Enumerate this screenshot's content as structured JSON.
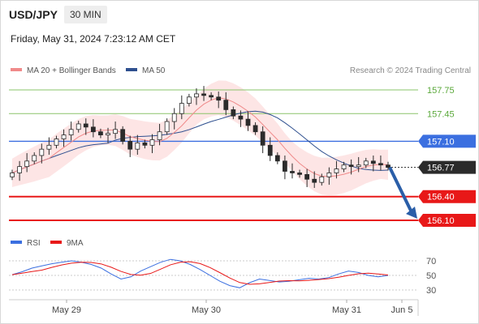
{
  "header": {
    "symbol": "USD/JPY",
    "timeframe": "30 MIN",
    "timestamp": "Friday, May 31, 2024 7:23:12 AM CET"
  },
  "legend": {
    "ma20_label": "MA 20 + Bollinger Bands",
    "ma50_label": "MA 50",
    "credit": "Research © 2024 Trading Central",
    "rsi_label": "RSI",
    "rsi_ma_label": "9MA"
  },
  "colors": {
    "ma20": "#f08a8a",
    "ma50": "#2e4f8f",
    "bollinger": "#fde0e0",
    "resistance": "#8ac46a",
    "pivot": "#3b6fe0",
    "support": "#e81818",
    "current": "#2b2b2b",
    "candle": "#2b2b2b",
    "arrow": "#2a5ea8",
    "rsi": "#3b6fe0",
    "rsi_ma": "#e81818"
  },
  "chart_data": [
    {
      "type": "candlestick",
      "instrument": "USD/JPY",
      "timeframe": "30 MIN",
      "x_ticks": [
        "May 29",
        "May 30",
        "May 31",
        "Jun 5"
      ],
      "ylim": [
        155.98,
        158.0
      ],
      "levels": [
        {
          "kind": "resistance",
          "value": 157.75,
          "label": "157.75"
        },
        {
          "kind": "resistance",
          "value": 157.45,
          "label": "157.45"
        },
        {
          "kind": "pivot",
          "value": 157.1,
          "label": "157.10"
        },
        {
          "kind": "current",
          "value": 156.77,
          "label": "156.77"
        },
        {
          "kind": "support",
          "value": 156.4,
          "label": "156.40"
        },
        {
          "kind": "support",
          "value": 156.1,
          "label": "156.10"
        }
      ],
      "forecast_arrow": {
        "from": 156.77,
        "to": 156.1
      },
      "approx_close": [
        156.7,
        156.78,
        156.85,
        156.92,
        157.0,
        157.05,
        157.13,
        157.18,
        157.25,
        157.32,
        157.28,
        157.22,
        157.18,
        157.2,
        157.25,
        157.1,
        157.0,
        157.08,
        157.05,
        157.12,
        157.22,
        157.35,
        157.45,
        157.58,
        157.66,
        157.7,
        157.68,
        157.66,
        157.62,
        157.5,
        157.42,
        157.38,
        157.3,
        157.22,
        157.05,
        156.92,
        156.85,
        156.72,
        156.7,
        156.68,
        156.62,
        156.58,
        156.65,
        156.7,
        156.75,
        156.8,
        156.78,
        156.8,
        156.85,
        156.82,
        156.8,
        156.77
      ]
    },
    {
      "type": "line",
      "name": "RSI",
      "y_ticks": [
        70,
        50,
        30
      ],
      "ylim": [
        20,
        80
      ],
      "approx_rsi": [
        51,
        55,
        60,
        63,
        66,
        68,
        70,
        68,
        65,
        60,
        52,
        45,
        48,
        56,
        62,
        68,
        72,
        70,
        65,
        58,
        50,
        42,
        36,
        33,
        40,
        45,
        43,
        41,
        42,
        44,
        46,
        45,
        47,
        52,
        56,
        54,
        50,
        48,
        50
      ]
    }
  ]
}
